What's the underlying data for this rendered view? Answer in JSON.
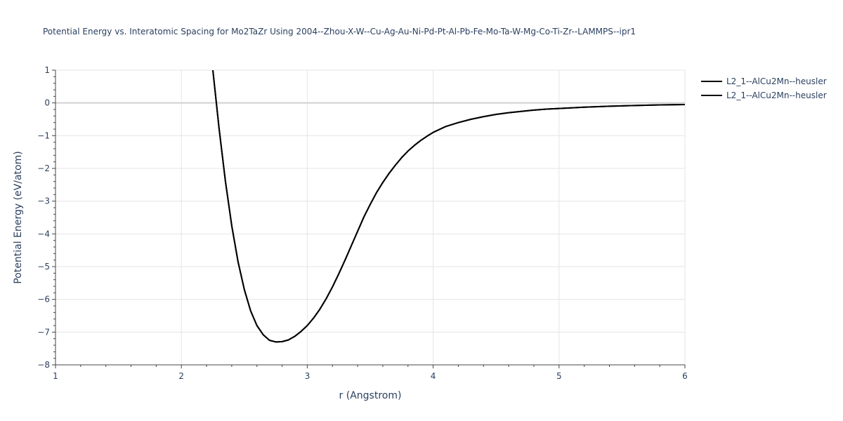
{
  "chart_data": {
    "type": "line",
    "title": "Potential Energy vs. Interatomic Spacing for Mo2TaZr Using 2004--Zhou-X-W--Cu-Ag-Au-Ni-Pd-Pt-Al-Pb-Fe-Mo-Ta-W-Mg-Co-Ti-Zr--LAMMPS--ipr1",
    "xlabel": "r (Angstrom)",
    "ylabel": "Potential Energy (eV/atom)",
    "xlim": [
      1,
      6
    ],
    "ylim": [
      -8,
      1
    ],
    "xticks": [
      1,
      2,
      3,
      4,
      5,
      6
    ],
    "yticks": [
      1,
      0,
      -1,
      -2,
      -3,
      -4,
      -5,
      -6,
      -7,
      -8
    ],
    "grid": true,
    "legend_position": "top-right",
    "series": [
      {
        "name": "L2_1--AlCu2Mn--heusler",
        "color": "#000000",
        "x": [
          2.25,
          2.3,
          2.35,
          2.4,
          2.45,
          2.5,
          2.55,
          2.6,
          2.65,
          2.7,
          2.75,
          2.8,
          2.85,
          2.9,
          2.95,
          3.0,
          3.05,
          3.1,
          3.15,
          3.2,
          3.25,
          3.3,
          3.35,
          3.4,
          3.45,
          3.5,
          3.55,
          3.6,
          3.65,
          3.7,
          3.75,
          3.8,
          3.85,
          3.9,
          3.95,
          4.0,
          4.1,
          4.2,
          4.3,
          4.4,
          4.5,
          4.6,
          4.7,
          4.8,
          4.9,
          5.0,
          5.2,
          5.4,
          5.6,
          5.8,
          6.0
        ],
        "y": [
          1.0,
          -0.8,
          -2.4,
          -3.75,
          -4.85,
          -5.7,
          -6.35,
          -6.8,
          -7.08,
          -7.25,
          -7.3,
          -7.29,
          -7.24,
          -7.13,
          -6.98,
          -6.8,
          -6.57,
          -6.3,
          -5.98,
          -5.62,
          -5.22,
          -4.8,
          -4.36,
          -3.92,
          -3.48,
          -3.1,
          -2.74,
          -2.43,
          -2.15,
          -1.9,
          -1.67,
          -1.47,
          -1.3,
          -1.15,
          -1.02,
          -0.9,
          -0.72,
          -0.6,
          -0.5,
          -0.42,
          -0.35,
          -0.3,
          -0.26,
          -0.22,
          -0.19,
          -0.17,
          -0.13,
          -0.1,
          -0.08,
          -0.06,
          -0.05
        ]
      },
      {
        "name": "L2_1--AlCu2Mn--heusler",
        "color": "#000000",
        "x": [
          2.25,
          2.3,
          2.35,
          2.4,
          2.45,
          2.5,
          2.55,
          2.6,
          2.65,
          2.7,
          2.75,
          2.8,
          2.85,
          2.9,
          2.95,
          3.0,
          3.05,
          3.1,
          3.15,
          3.2,
          3.25,
          3.3,
          3.35,
          3.4,
          3.45,
          3.5,
          3.55,
          3.6,
          3.65,
          3.7,
          3.75,
          3.8,
          3.85,
          3.9,
          3.95,
          4.0,
          4.1,
          4.2,
          4.3,
          4.4,
          4.5,
          4.6,
          4.7,
          4.8,
          4.9,
          5.0,
          5.2,
          5.4,
          5.6,
          5.8,
          6.0
        ],
        "y": [
          1.0,
          -0.8,
          -2.4,
          -3.75,
          -4.85,
          -5.7,
          -6.35,
          -6.8,
          -7.08,
          -7.25,
          -7.3,
          -7.29,
          -7.24,
          -7.13,
          -6.98,
          -6.8,
          -6.57,
          -6.3,
          -5.98,
          -5.62,
          -5.22,
          -4.8,
          -4.36,
          -3.92,
          -3.48,
          -3.1,
          -2.74,
          -2.43,
          -2.15,
          -1.9,
          -1.67,
          -1.47,
          -1.3,
          -1.15,
          -1.02,
          -0.9,
          -0.72,
          -0.6,
          -0.5,
          -0.42,
          -0.35,
          -0.3,
          -0.26,
          -0.22,
          -0.19,
          -0.17,
          -0.13,
          -0.1,
          -0.08,
          -0.06,
          -0.05
        ]
      }
    ]
  }
}
